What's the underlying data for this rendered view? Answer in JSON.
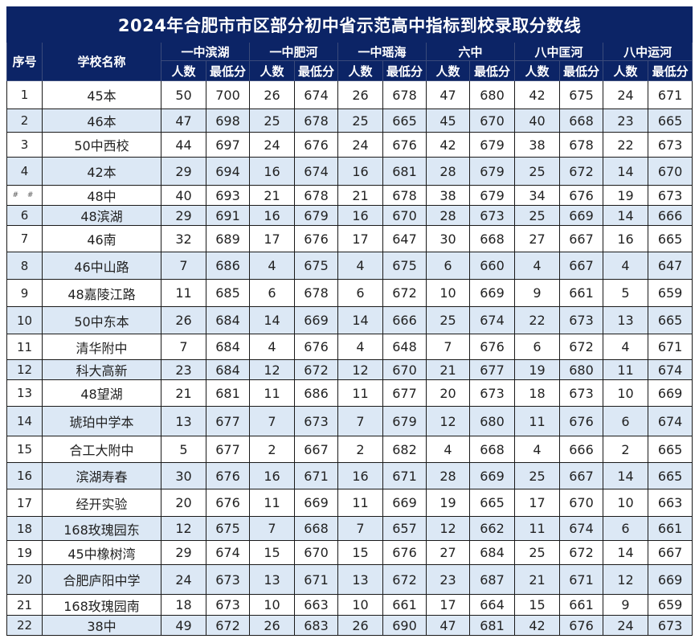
{
  "title": "2024年合肥市市区部分初中省示范高中指标到校录取分数线",
  "headers": {
    "index": "序号",
    "school": "学校名称",
    "groups": [
      "一中滨湖",
      "一中肥河",
      "一中瑶海",
      "六中",
      "八中匡河",
      "八中运河"
    ],
    "sub": [
      "人数",
      "最低分"
    ]
  },
  "colors": {
    "header_bg": "#0c2466",
    "header_text": "#ffffff",
    "stripe": "#dce8f5",
    "row_bg": "#ffffff"
  },
  "rows": [
    {
      "idx": "1",
      "school": "45本",
      "v": [
        "50",
        "700",
        "26",
        "674",
        "26",
        "678",
        "47",
        "680",
        "42",
        "675",
        "24",
        "671"
      ]
    },
    {
      "idx": "2",
      "school": "46本",
      "v": [
        "47",
        "698",
        "25",
        "678",
        "25",
        "665",
        "45",
        "670",
        "40",
        "668",
        "23",
        "665"
      ]
    },
    {
      "idx": "3",
      "school": "50中西校",
      "v": [
        "44",
        "697",
        "24",
        "676",
        "24",
        "676",
        "42",
        "679",
        "38",
        "678",
        "22",
        "673"
      ]
    },
    {
      "idx": "4",
      "school": "42本",
      "v": [
        "29",
        "694",
        "16",
        "674",
        "16",
        "681",
        "28",
        "679",
        "25",
        "672",
        "14",
        "670"
      ]
    },
    {
      "idx": "# #",
      "school": "48中",
      "v": [
        "40",
        "693",
        "21",
        "678",
        "21",
        "678",
        "38",
        "679",
        "34",
        "676",
        "19",
        "673"
      ]
    },
    {
      "idx": "6",
      "school": "48滨湖",
      "v": [
        "29",
        "691",
        "16",
        "679",
        "16",
        "670",
        "28",
        "673",
        "25",
        "669",
        "14",
        "666"
      ]
    },
    {
      "idx": "7",
      "school": "46南",
      "v": [
        "32",
        "689",
        "17",
        "676",
        "17",
        "647",
        "30",
        "668",
        "27",
        "667",
        "16",
        "665"
      ]
    },
    {
      "idx": "8",
      "school": "46中山路",
      "v": [
        "7",
        "686",
        "4",
        "675",
        "4",
        "675",
        "6",
        "660",
        "4",
        "667",
        "4",
        "647"
      ]
    },
    {
      "idx": "9",
      "school": "48嘉陵江路",
      "v": [
        "11",
        "685",
        "6",
        "678",
        "6",
        "672",
        "10",
        "669",
        "9",
        "661",
        "5",
        "659"
      ]
    },
    {
      "idx": "10",
      "school": "50中东本",
      "v": [
        "26",
        "684",
        "14",
        "669",
        "14",
        "666",
        "25",
        "674",
        "22",
        "673",
        "13",
        "665"
      ]
    },
    {
      "idx": "11",
      "school": "清华附中",
      "v": [
        "7",
        "684",
        "4",
        "676",
        "4",
        "648",
        "7",
        "676",
        "6",
        "672",
        "4",
        "671"
      ]
    },
    {
      "idx": "12",
      "school": "科大高新",
      "v": [
        "23",
        "684",
        "12",
        "672",
        "12",
        "670",
        "21",
        "677",
        "19",
        "680",
        "11",
        "674"
      ]
    },
    {
      "idx": "13",
      "school": "48望湖",
      "v": [
        "21",
        "681",
        "11",
        "686",
        "11",
        "677",
        "20",
        "673",
        "18",
        "673",
        "10",
        "669"
      ]
    },
    {
      "idx": "14",
      "school": "琥珀中学本",
      "v": [
        "13",
        "677",
        "7",
        "673",
        "7",
        "679",
        "12",
        "680",
        "11",
        "676",
        "6",
        "674"
      ]
    },
    {
      "idx": "15",
      "school": "合工大附中",
      "v": [
        "5",
        "677",
        "2",
        "667",
        "2",
        "682",
        "4",
        "668",
        "4",
        "666",
        "2",
        "665"
      ]
    },
    {
      "idx": "16",
      "school": "滨湖寿春",
      "v": [
        "30",
        "676",
        "16",
        "671",
        "16",
        "671",
        "28",
        "669",
        "25",
        "667",
        "14",
        "665"
      ]
    },
    {
      "idx": "17",
      "school": "经开实验",
      "v": [
        "20",
        "676",
        "11",
        "669",
        "11",
        "669",
        "19",
        "665",
        "17",
        "670",
        "10",
        "663"
      ]
    },
    {
      "idx": "18",
      "school": "168玫瑰园东",
      "v": [
        "12",
        "675",
        "7",
        "668",
        "7",
        "657",
        "12",
        "662",
        "11",
        "674",
        "6",
        "661"
      ]
    },
    {
      "idx": "19",
      "school": "45中橡树湾",
      "v": [
        "29",
        "674",
        "15",
        "670",
        "15",
        "676",
        "27",
        "684",
        "25",
        "672",
        "14",
        "667"
      ]
    },
    {
      "idx": "20",
      "school": "合肥庐阳中学",
      "v": [
        "24",
        "673",
        "13",
        "671",
        "13",
        "672",
        "23",
        "687",
        "21",
        "671",
        "12",
        "669"
      ]
    },
    {
      "idx": "21",
      "school": "168玫瑰园南",
      "v": [
        "18",
        "673",
        "10",
        "663",
        "10",
        "661",
        "17",
        "664",
        "15",
        "661",
        "9",
        "659"
      ]
    },
    {
      "idx": "22",
      "school": "38中",
      "v": [
        "49",
        "672",
        "26",
        "683",
        "26",
        "690",
        "47",
        "681",
        "42",
        "676",
        "24",
        "673"
      ]
    }
  ]
}
